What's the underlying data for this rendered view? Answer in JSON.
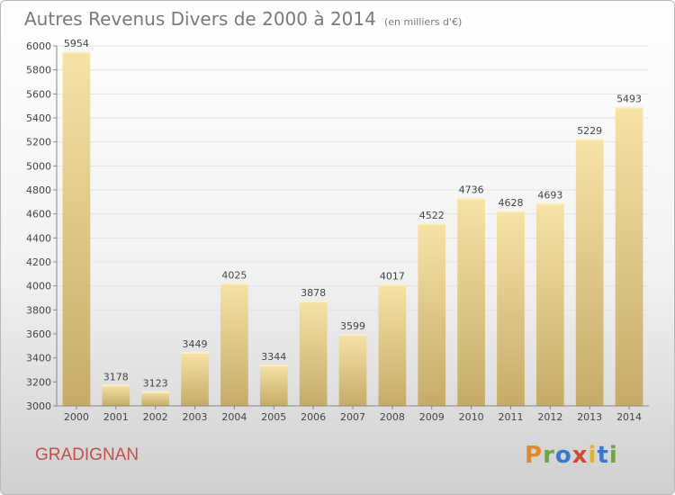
{
  "title": {
    "main": "Autres Revenus Divers de 2000 à 2014",
    "unit": "(en milliers d'€)"
  },
  "city": "GRADIGNAN",
  "logo_letters": [
    "P",
    "r",
    "o",
    "x",
    "i",
    "t",
    "i"
  ],
  "colors": {
    "bar_top": "#f6e3a6",
    "bar_bottom": "#c6ab67",
    "grid": "#e3e3e3",
    "text": "#444444",
    "title": "#7a7a7a",
    "city": "#c0504d"
  },
  "chart_data": {
    "type": "bar",
    "title": "Autres Revenus Divers de 2000 à 2014",
    "subtitle": "(en milliers d'€)",
    "categories": [
      "2000",
      "2001",
      "2002",
      "2003",
      "2004",
      "2005",
      "2006",
      "2007",
      "2008",
      "2009",
      "2010",
      "2011",
      "2012",
      "2013",
      "2014"
    ],
    "values": [
      5954,
      3178,
      3123,
      3449,
      4025,
      3344,
      3878,
      3599,
      4017,
      4522,
      4736,
      4628,
      4693,
      5229,
      5493
    ],
    "ylim": [
      3000,
      6000
    ],
    "yticks": [
      3000,
      3200,
      3400,
      3600,
      3800,
      4000,
      4200,
      4400,
      4600,
      4800,
      5000,
      5200,
      5400,
      5600,
      5800,
      6000
    ],
    "grid": true,
    "data_labels": true
  }
}
